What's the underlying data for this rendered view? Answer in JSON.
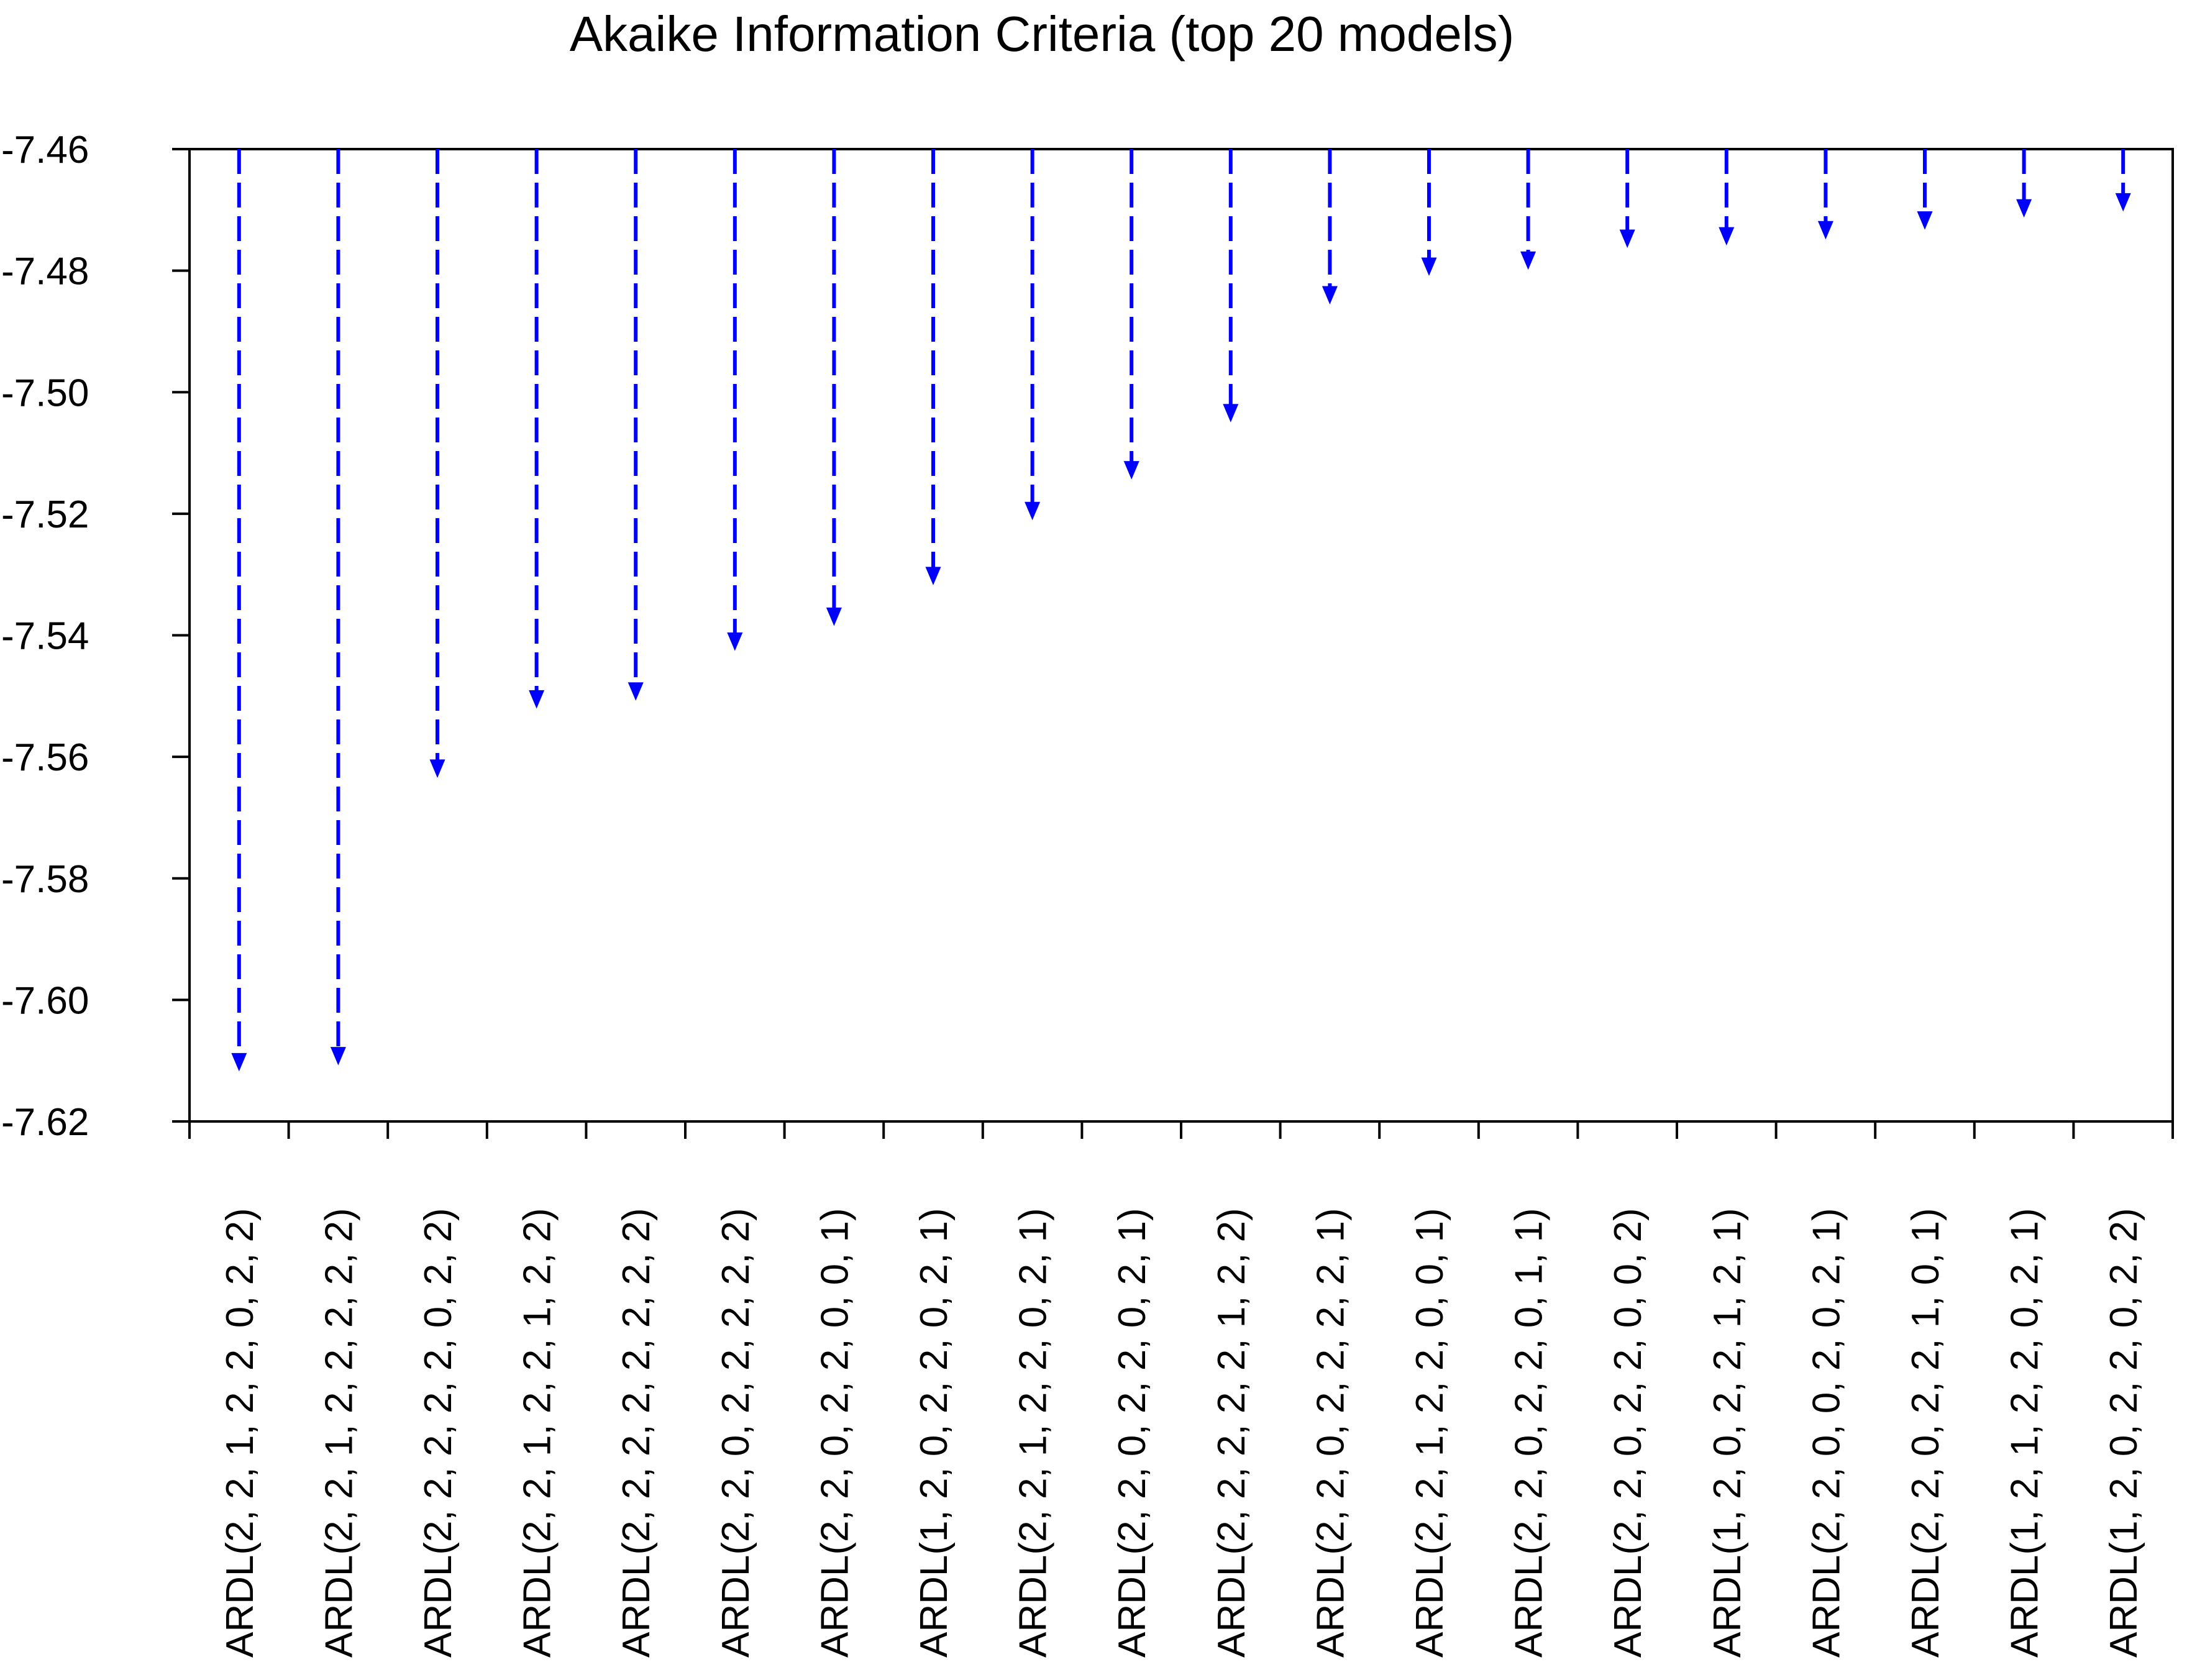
{
  "chart_data": {
    "type": "bar",
    "title": "Akaike Information Criteria (top 20 models)",
    "xlabel": "",
    "ylabel": "",
    "ylim": [
      -7.62,
      -7.46
    ],
    "yticks": [
      "-7.46",
      "-7.48",
      "-7.50",
      "-7.52",
      "-7.54",
      "-7.56",
      "-7.58",
      "-7.60",
      "-7.62"
    ],
    "ytick_values": [
      -7.46,
      -7.48,
      -7.5,
      -7.52,
      -7.54,
      -7.56,
      -7.58,
      -7.6,
      -7.62
    ],
    "categories": [
      "ARDL(2, 2, 1, 2, 2, 0, 2, 2)",
      "ARDL(2, 2, 1, 2, 2, 2, 2, 2)",
      "ARDL(2, 2, 2, 2, 2, 0, 2, 2)",
      "ARDL(2, 2, 1, 2, 2, 1, 2, 2)",
      "ARDL(2, 2, 2, 2, 2, 2, 2, 2)",
      "ARDL(2, 2, 0, 2, 2, 2, 2, 2)",
      "ARDL(2, 2, 0, 2, 2, 0, 0, 1)",
      "ARDL(1, 2, 0, 2, 2, 0, 2, 1)",
      "ARDL(2, 2, 1, 2, 2, 0, 2, 1)",
      "ARDL(2, 2, 0, 2, 2, 0, 2, 1)",
      "ARDL(2, 2, 2, 2, 2, 1, 2, 2)",
      "ARDL(2, 2, 0, 2, 2, 2, 2, 1)",
      "ARDL(2, 2, 1, 2, 2, 0, 0, 1)",
      "ARDL(2, 2, 0, 2, 2, 0, 1, 1)",
      "ARDL(2, 2, 0, 2, 2, 0, 0, 2)",
      "ARDL(1, 2, 0, 2, 2, 1, 2, 1)",
      "ARDL(2, 2, 0, 0, 2, 0, 2, 1)",
      "ARDL(2, 2, 0, 2, 2, 1, 0, 1)",
      "ARDL(1, 2, 1, 2, 2, 0, 2, 1)",
      "ARDL(1, 2, 0, 2, 2, 0, 2, 2)"
    ],
    "values": [
      -7.6115,
      -7.6105,
      -7.5632,
      -7.5518,
      -7.5505,
      -7.5423,
      -7.5382,
      -7.5315,
      -7.5208,
      -7.5141,
      -7.5047,
      -7.4853,
      -7.4806,
      -7.4796,
      -7.476,
      -7.4756,
      -7.4746,
      -7.473,
      -7.471,
      -7.47
    ],
    "grid": false,
    "legend": "none",
    "bar_style": "dashed arrow",
    "colors": {
      "bars": "#0000FF",
      "axes": "#000000",
      "background": "#FFFFFF"
    }
  }
}
